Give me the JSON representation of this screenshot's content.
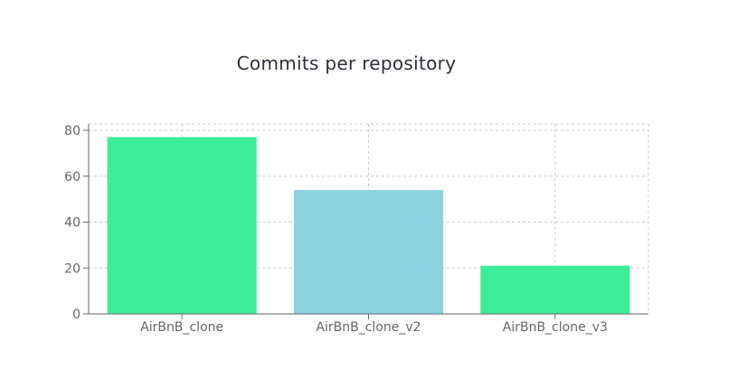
{
  "chart_data": {
    "type": "bar",
    "title": "Commits per repository",
    "categories": [
      "AirBnB_clone",
      "AirBnB_clone_v2",
      "AirBnB_clone_v3"
    ],
    "values": [
      77,
      54,
      21
    ],
    "bar_colors": [
      "#3ded97",
      "#8ed1e0",
      "#3ded97"
    ],
    "ylim": [
      0,
      80
    ],
    "yticks": [
      0,
      20,
      40,
      60,
      80
    ],
    "xlabel": "",
    "ylabel": "",
    "grid": true
  }
}
